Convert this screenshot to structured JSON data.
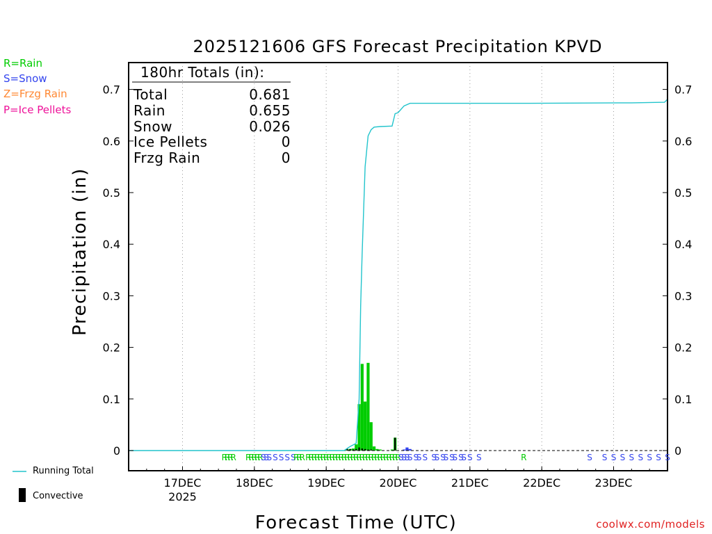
{
  "colors": {
    "rain": "#00cc00",
    "snow": "#3344ee",
    "frzg_rain": "#ff8833",
    "ice_pellets": "#ee1199",
    "running_total": "#22c4cc",
    "convective": "#000000",
    "credit": "#e02020"
  },
  "type_legend": [
    {
      "label": "R=Rain",
      "color": "#00cc00"
    },
    {
      "label": "S=Snow",
      "color": "#3344ee"
    },
    {
      "label": "Z=Frzg Rain",
      "color": "#ff8833"
    },
    {
      "label": "P=Ice Pellets",
      "color": "#ee1199"
    }
  ],
  "totals": {
    "header": "180hr Totals (in):",
    "rows": [
      {
        "label": "Total",
        "value": "0.681"
      },
      {
        "label": "Rain",
        "value": "0.655"
      },
      {
        "label": "Snow",
        "value": "0.026"
      },
      {
        "label": "Ice Pellets",
        "value": "0"
      },
      {
        "label": "Frzg Rain",
        "value": "0"
      }
    ]
  },
  "bottom_legend": {
    "running_total": "Running Total",
    "convective": "Convective"
  },
  "credit": "coolwx.com/models",
  "chart_data": {
    "type": "bar",
    "title": "2025121606 GFS Forecast Precipitation KPVD",
    "xlabel": "Forecast Time (UTC)",
    "ylabel": "Precipitation (in)",
    "xlim_hours": [
      0,
      180
    ],
    "ylim": [
      0,
      0.75
    ],
    "yticks": [
      0,
      0.1,
      0.2,
      0.3,
      0.4,
      0.5,
      0.6,
      0.7
    ],
    "ytick_labels": [
      "0",
      "0.1",
      "0.2",
      "0.3",
      "0.4",
      "0.5",
      "0.6",
      "0.7"
    ],
    "xticks": [
      {
        "hour": 18,
        "label": "17DEC",
        "sublabel": "2025"
      },
      {
        "hour": 42,
        "label": "18DEC",
        "sublabel": ""
      },
      {
        "hour": 66,
        "label": "19DEC",
        "sublabel": ""
      },
      {
        "hour": 90,
        "label": "20DEC",
        "sublabel": ""
      },
      {
        "hour": 114,
        "label": "21DEC",
        "sublabel": ""
      },
      {
        "hour": 138,
        "label": "22DEC",
        "sublabel": ""
      },
      {
        "hour": 162,
        "label": "23DEC",
        "sublabel": ""
      }
    ],
    "grid": "vertical dotted at day boundaries",
    "series": [
      {
        "name": "Rain",
        "kind": "bar",
        "color": "#00cc00",
        "hours": [
          73,
          74,
          75,
          76,
          77,
          78,
          79,
          80,
          81,
          82,
          83,
          84,
          88,
          89
        ],
        "values": [
          0.002,
          0.003,
          0.004,
          0.012,
          0.09,
          0.168,
          0.095,
          0.17,
          0.055,
          0.008,
          0.003,
          0.002,
          0.002,
          0.025
        ]
      },
      {
        "name": "Snow",
        "kind": "bar",
        "color": "#3344ee",
        "hours": [
          92,
          93,
          94
        ],
        "values": [
          0.002,
          0.006,
          0.003
        ]
      },
      {
        "name": "Convective",
        "kind": "bar",
        "color": "#000000",
        "hours": [
          73,
          74,
          75,
          76,
          77,
          78,
          79,
          80,
          81,
          89
        ],
        "values": [
          0.004,
          0.003,
          0.002,
          0.003,
          0.006,
          0.004,
          0.003,
          0.002,
          0.002,
          0.025
        ]
      },
      {
        "name": "Running Total",
        "kind": "line",
        "color": "#22c4cc",
        "hours": [
          0,
          72,
          73,
          74,
          76,
          77,
          77.5,
          78,
          79,
          80,
          81,
          82,
          84,
          88,
          89,
          90,
          92,
          94,
          100,
          130,
          168,
          179,
          180
        ],
        "values": [
          0,
          0,
          0.004,
          0.008,
          0.014,
          0.1,
          0.28,
          0.38,
          0.55,
          0.61,
          0.622,
          0.627,
          0.628,
          0.629,
          0.653,
          0.655,
          0.668,
          0.673,
          0.673,
          0.673,
          0.674,
          0.675,
          0.681
        ]
      }
    ],
    "type_markers": [
      {
        "hour": 32,
        "code": "R"
      },
      {
        "hour": 33,
        "code": "R"
      },
      {
        "hour": 34,
        "code": "R"
      },
      {
        "hour": 35,
        "code": "R"
      },
      {
        "hour": 40,
        "code": "R"
      },
      {
        "hour": 41,
        "code": "R"
      },
      {
        "hour": 42,
        "code": "R"
      },
      {
        "hour": 43,
        "code": "R"
      },
      {
        "hour": 44,
        "code": "R"
      },
      {
        "hour": 45,
        "code": "S"
      },
      {
        "hour": 46,
        "code": "S"
      },
      {
        "hour": 47,
        "code": "S"
      },
      {
        "hour": 49,
        "code": "S"
      },
      {
        "hour": 51,
        "code": "S"
      },
      {
        "hour": 53,
        "code": "S"
      },
      {
        "hour": 55,
        "code": "S"
      },
      {
        "hour": 56,
        "code": "R"
      },
      {
        "hour": 57,
        "code": "R"
      },
      {
        "hour": 58,
        "code": "R"
      },
      {
        "hour": 60,
        "code": "R"
      },
      {
        "hour": 61,
        "code": "R"
      },
      {
        "hour": 62,
        "code": "R"
      },
      {
        "hour": 63,
        "code": "R"
      },
      {
        "hour": 64,
        "code": "R"
      },
      {
        "hour": 65,
        "code": "R"
      },
      {
        "hour": 66,
        "code": "R"
      },
      {
        "hour": 67,
        "code": "R"
      },
      {
        "hour": 68,
        "code": "R"
      },
      {
        "hour": 69,
        "code": "R"
      },
      {
        "hour": 70,
        "code": "R"
      },
      {
        "hour": 71,
        "code": "R"
      },
      {
        "hour": 72,
        "code": "R"
      },
      {
        "hour": 73,
        "code": "R"
      },
      {
        "hour": 74,
        "code": "R"
      },
      {
        "hour": 75,
        "code": "R"
      },
      {
        "hour": 76,
        "code": "R"
      },
      {
        "hour": 77,
        "code": "R"
      },
      {
        "hour": 78,
        "code": "R"
      },
      {
        "hour": 79,
        "code": "R"
      },
      {
        "hour": 80,
        "code": "R"
      },
      {
        "hour": 81,
        "code": "R"
      },
      {
        "hour": 82,
        "code": "R"
      },
      {
        "hour": 83,
        "code": "R"
      },
      {
        "hour": 84,
        "code": "R"
      },
      {
        "hour": 85,
        "code": "R"
      },
      {
        "hour": 86,
        "code": "R"
      },
      {
        "hour": 87,
        "code": "R"
      },
      {
        "hour": 88,
        "code": "R"
      },
      {
        "hour": 89,
        "code": "R"
      },
      {
        "hour": 90,
        "code": "R"
      },
      {
        "hour": 91,
        "code": "S"
      },
      {
        "hour": 92,
        "code": "S"
      },
      {
        "hour": 93,
        "code": "S"
      },
      {
        "hour": 94,
        "code": "S"
      },
      {
        "hour": 96,
        "code": "S"
      },
      {
        "hour": 97,
        "code": "S"
      },
      {
        "hour": 99,
        "code": "S"
      },
      {
        "hour": 102,
        "code": "S"
      },
      {
        "hour": 103,
        "code": "S"
      },
      {
        "hour": 105,
        "code": "S"
      },
      {
        "hour": 106,
        "code": "S"
      },
      {
        "hour": 108,
        "code": "S"
      },
      {
        "hour": 109,
        "code": "S"
      },
      {
        "hour": 111,
        "code": "S"
      },
      {
        "hour": 112,
        "code": "S"
      },
      {
        "hour": 114,
        "code": "S"
      },
      {
        "hour": 117,
        "code": "S"
      },
      {
        "hour": 132,
        "code": "R"
      },
      {
        "hour": 154,
        "code": "S"
      },
      {
        "hour": 159,
        "code": "S"
      },
      {
        "hour": 162,
        "code": "S"
      },
      {
        "hour": 165,
        "code": "S"
      },
      {
        "hour": 168,
        "code": "S"
      },
      {
        "hour": 171,
        "code": "S"
      },
      {
        "hour": 174,
        "code": "S"
      },
      {
        "hour": 177,
        "code": "S"
      },
      {
        "hour": 180,
        "code": "S"
      }
    ]
  }
}
